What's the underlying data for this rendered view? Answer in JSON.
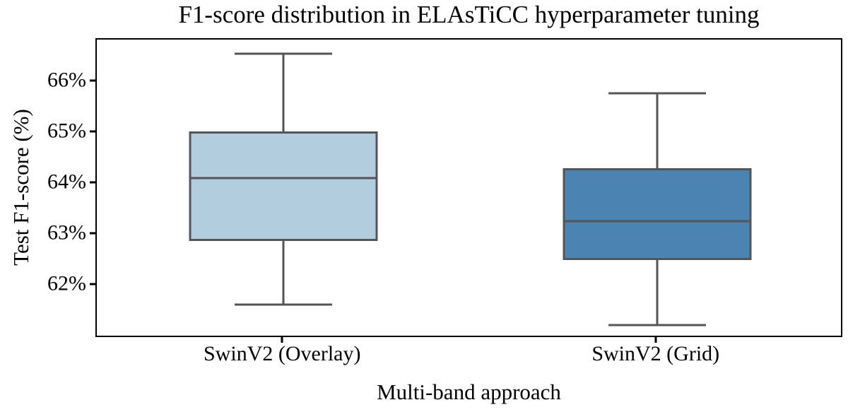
{
  "title": "F1-score distribution in ELAsTiCC hyperparameter tuning",
  "chart_data": {
    "type": "boxplot",
    "title": "F1-score distribution in ELAsTiCC hyperparameter tuning",
    "xlabel": "Multi-band approach",
    "ylabel": "Test F1-score (%)",
    "categories": [
      "SwinV2 (Overlay)",
      "SwinV2 (Grid)"
    ],
    "ylim": [
      60.96,
      66.83
    ],
    "grid": false,
    "yticks": [
      {
        "label": "66%",
        "value": 66
      },
      {
        "label": "65%",
        "value": 65
      },
      {
        "label": "64%",
        "value": 64
      },
      {
        "label": "63%",
        "value": 63
      },
      {
        "label": "62%",
        "value": 62
      }
    ],
    "series": [
      {
        "name": "SwinV2 (Overlay)",
        "whisker_low": 61.62,
        "q1": 62.87,
        "median": 64.11,
        "q3": 65.03,
        "whisker_high": 66.55,
        "fill_color": "#b2cdde"
      },
      {
        "name": "SwinV2 (Grid)",
        "whisker_low": 61.23,
        "q1": 62.5,
        "median": 63.26,
        "q3": 64.3,
        "whisker_high": 65.77,
        "fill_color": "#4a84b2"
      }
    ],
    "colors": {
      "box_line": "#555555",
      "spine": "#000000",
      "text": "#000000",
      "background": "#ffffff"
    }
  }
}
